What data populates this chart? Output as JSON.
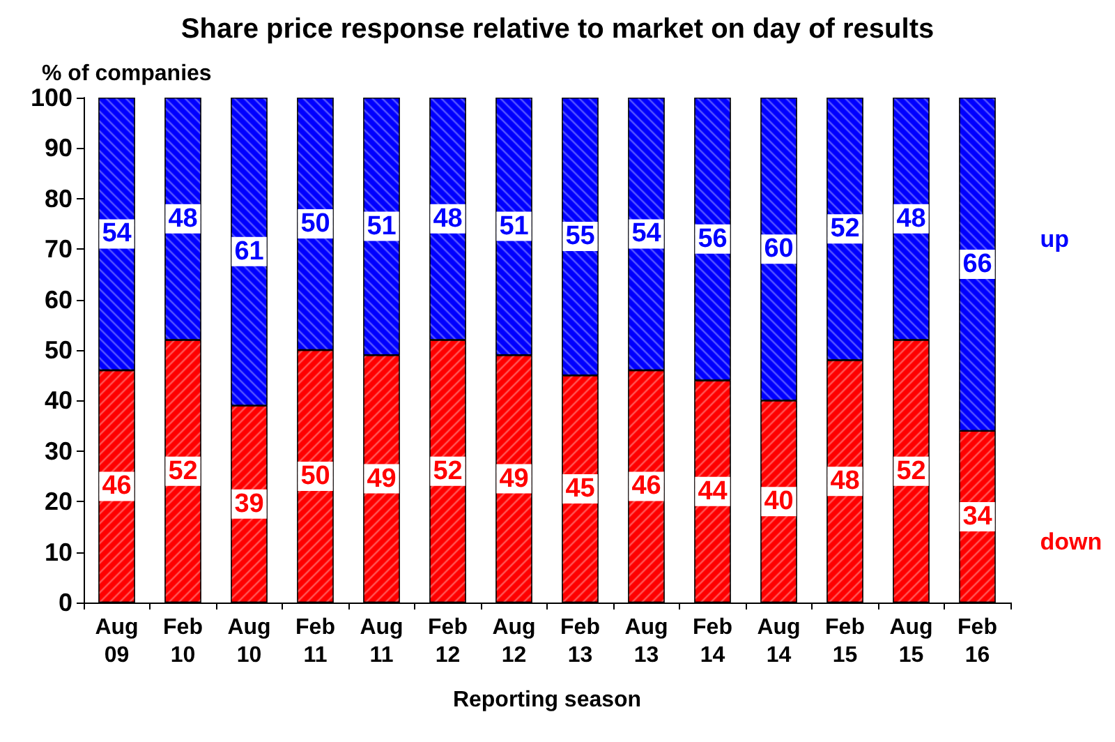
{
  "chart_data": {
    "type": "bar",
    "title": "Share price response relative to market on day of results",
    "xlabel": "Reporting season",
    "ylabel": "% of companies",
    "categories": [
      "Aug\n09",
      "Feb\n10",
      "Aug\n10",
      "Feb\n11",
      "Aug\n11",
      "Feb\n12",
      "Aug\n12",
      "Feb\n13",
      "Aug\n13",
      "Feb\n14",
      "Aug\n14",
      "Feb\n15",
      "Aug\n15",
      "Feb\n16"
    ],
    "stacked": true,
    "data_labels": true,
    "legend": false,
    "grid": false,
    "ylim": [
      0,
      100
    ],
    "yticks": [
      0,
      10,
      20,
      30,
      40,
      50,
      60,
      70,
      80,
      90,
      100
    ],
    "series": [
      {
        "name": "down",
        "color": "#ff0000",
        "values": [
          46,
          52,
          39,
          50,
          49,
          52,
          49,
          45,
          46,
          44,
          40,
          48,
          52,
          34
        ]
      },
      {
        "name": "up",
        "color": "#0000ff",
        "values": [
          54,
          48,
          61,
          50,
          51,
          48,
          51,
          55,
          54,
          56,
          60,
          52,
          48,
          66
        ]
      }
    ]
  }
}
